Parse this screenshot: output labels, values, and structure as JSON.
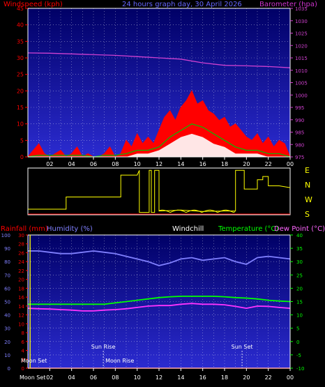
{
  "titles": {
    "windspeed": "Windspeed (kph)",
    "graph_title": "24 hours graph day, 30 April 2026",
    "barometer": "Barometer (hpa)",
    "rainfall": "Rainfall (mm)",
    "humidity": "Humidity (%)",
    "windchill": "Windchill",
    "temperature": "Temperature (°C)",
    "dewpoint": "Dew Point (°C)"
  },
  "colors": {
    "plot_bg_top": "#000066",
    "plot_bg_bottom": "#2b2bd0",
    "wind_gust": "#ff0000",
    "wind_avg": "#ffffff",
    "wind_green": "#00c000",
    "barometer": "#d040d0",
    "direction": "#ffff00",
    "humidity": "#8080ff",
    "temperature": "#00ff00",
    "dewpoint": "#ff33ff",
    "rainfall": "#ff0000"
  },
  "compass": [
    "E",
    "N",
    "W",
    "S"
  ],
  "astro": {
    "moon_set": "Moon Set",
    "sun_rise": "Sun Rise",
    "moon_rise": "Moon Rise",
    "sun_set": "Sun Set",
    "moon_set_hour": 0.2,
    "sun_rise_hour": 6.9,
    "moon_rise_hour": 6.9,
    "sun_set_hour": 19.6
  },
  "chart_data": [
    {
      "type": "area",
      "name": "wind-barometer",
      "x_ticks": [
        "02",
        "04",
        "06",
        "08",
        "10",
        "12",
        "14",
        "16",
        "18",
        "20",
        "22",
        "00"
      ],
      "xlim": [
        0,
        24
      ],
      "y_left": {
        "label": "Windspeed (kph)",
        "ylim": [
          0,
          45
        ],
        "ticks": [
          "0",
          "5",
          "10",
          "15",
          "20",
          "25",
          "30",
          "35",
          "40",
          "45"
        ]
      },
      "y_right": {
        "label": "Barometer (hpa)",
        "ylim": [
          975,
          1035
        ],
        "ticks": [
          "975",
          "980",
          "985",
          "990",
          "995",
          "1000",
          "1005",
          "1010",
          "1015",
          "1020",
          "1025",
          "1030",
          "1035"
        ]
      },
      "wind_gust": {
        "x": [
          0,
          0.5,
          1,
          1.5,
          2,
          2.5,
          3,
          3.5,
          4,
          4.5,
          5,
          5.5,
          6,
          6.5,
          7,
          7.5,
          8,
          8.5,
          9,
          9.5,
          10,
          10.5,
          11,
          11.5,
          12,
          12.5,
          13,
          13.5,
          14,
          14.5,
          15,
          15.5,
          16,
          16.5,
          17,
          17.5,
          18,
          18.5,
          19,
          19.5,
          20,
          20.5,
          21,
          21.5,
          22,
          22.5,
          23,
          23.5,
          24
        ],
        "values": [
          0,
          2,
          4,
          1,
          0,
          1,
          2,
          0,
          1,
          3,
          0,
          1,
          0,
          0,
          1,
          3,
          0,
          1,
          5,
          3,
          7,
          4,
          6,
          4,
          8,
          12,
          14,
          11,
          15,
          17,
          20,
          16,
          17,
          14,
          13,
          11,
          12,
          9,
          10,
          8,
          6,
          5,
          7,
          4,
          6,
          3,
          5,
          4,
          0
        ]
      },
      "wind_avg": {
        "x": [
          0,
          1,
          2,
          3,
          4,
          5,
          6,
          7,
          8,
          9,
          10,
          11,
          12,
          13,
          14,
          15,
          16,
          17,
          18,
          19,
          20,
          21,
          22,
          23,
          24
        ],
        "values": [
          0,
          0,
          0,
          0,
          0,
          0,
          0,
          0,
          0,
          0,
          1,
          1,
          2,
          4,
          6,
          7,
          6,
          4,
          3,
          1,
          1,
          1,
          0,
          0,
          0
        ]
      },
      "wind_green": {
        "x": [
          0,
          1,
          2,
          3,
          4,
          5,
          6,
          7,
          8,
          9,
          10,
          11,
          12,
          13,
          14,
          15,
          16,
          17,
          18,
          19,
          20,
          21,
          22,
          23,
          24
        ],
        "values": [
          0,
          0.5,
          0.5,
          0.5,
          0.5,
          0.5,
          0,
          0.5,
          0.5,
          1,
          2,
          2,
          3,
          6,
          8,
          10,
          9,
          7,
          5,
          3,
          2,
          2,
          1,
          1,
          0
        ]
      },
      "barometer": {
        "x": [
          0,
          2,
          4,
          6,
          8,
          10,
          12,
          14,
          16,
          18,
          20,
          22,
          24
        ],
        "values": [
          1017,
          1016.9,
          1016.6,
          1016.3,
          1016,
          1015.5,
          1015,
          1014.5,
          1013,
          1012,
          1011.8,
          1011.5,
          1011
        ]
      }
    },
    {
      "type": "line",
      "name": "wind-direction",
      "x_ticks": [
        "02",
        "04",
        "06",
        "08",
        "10",
        "12",
        "14",
        "16",
        "18",
        "20",
        "22",
        "00"
      ],
      "xlim": [
        0,
        24
      ],
      "compass_labels": [
        "E",
        "N",
        "W",
        "S"
      ],
      "direction": {
        "x": [
          0,
          3.5,
          3.5,
          8.5,
          8.5,
          10,
          10.2,
          10.2,
          11.1,
          11.1,
          11.3,
          11.3,
          11.6,
          11.6,
          12,
          12,
          14,
          16,
          18,
          19,
          19,
          19.8,
          19.8,
          21,
          21,
          21.5,
          21.5,
          22,
          22,
          23,
          24
        ],
        "values": [
          0.12,
          0.12,
          0.38,
          0.38,
          0.85,
          0.85,
          0.95,
          0.05,
          0.05,
          0.95,
          0.95,
          0.05,
          0.05,
          0.95,
          0.95,
          0.08,
          0.1,
          0.07,
          0.08,
          0.08,
          0.95,
          0.95,
          0.55,
          0.55,
          0.75,
          0.75,
          0.82,
          0.82,
          0.62,
          0.62,
          0.58
        ]
      }
    },
    {
      "type": "line",
      "name": "temp-humidity-rain",
      "x_ticks": [
        "Moon Set",
        "02",
        "04",
        "06",
        "08",
        "10",
        "12",
        "14",
        "16",
        "18",
        "20",
        "22",
        "00"
      ],
      "xlim": [
        0,
        24
      ],
      "y_humidity": {
        "label": "Humidity (%)",
        "ylim": [
          0,
          100
        ],
        "ticks": [
          "0",
          "10",
          "20",
          "30",
          "40",
          "50",
          "60",
          "70",
          "80",
          "90",
          "100"
        ]
      },
      "y_rain": {
        "label": "Rainfall (mm)",
        "ylim": [
          0,
          30
        ],
        "ticks": [
          "0",
          "2",
          "4",
          "6",
          "8",
          "10",
          "12",
          "14",
          "16",
          "18",
          "20",
          "22",
          "24",
          "26",
          "28",
          "30"
        ]
      },
      "y_temp": {
        "label": "Temperature (°C)",
        "ylim": [
          -10,
          40
        ],
        "ticks": [
          "-10",
          "-5",
          "0",
          "5",
          "10",
          "15",
          "20",
          "25",
          "30",
          "35",
          "40"
        ]
      },
      "humidity": {
        "x": [
          0,
          1,
          2,
          3,
          4,
          5,
          6,
          7,
          8,
          9,
          10,
          11,
          12,
          13,
          14,
          15,
          16,
          17,
          18,
          19,
          20,
          21,
          22,
          23,
          24
        ],
        "values": [
          88,
          88,
          87,
          86,
          86,
          87,
          88,
          87,
          86,
          84,
          82,
          80,
          77,
          79,
          82,
          83,
          81,
          82,
          83,
          80,
          78,
          83,
          84,
          83,
          82
        ]
      },
      "temperature": {
        "x": [
          0,
          1,
          2,
          3,
          4,
          5,
          6,
          7,
          8,
          9,
          10,
          11,
          12,
          13,
          14,
          15,
          16,
          17,
          18,
          19,
          20,
          21,
          22,
          23,
          24
        ],
        "values": [
          14,
          14,
          14,
          14,
          14,
          14,
          14,
          14,
          14.5,
          15,
          15.5,
          16,
          16.5,
          16.8,
          17,
          17,
          17,
          17,
          16.8,
          16.5,
          16.3,
          16,
          15.5,
          15.2,
          15
        ]
      },
      "dewpoint": {
        "x": [
          0,
          1,
          2,
          3,
          4,
          5,
          6,
          7,
          8,
          9,
          10,
          11,
          12,
          13,
          14,
          15,
          16,
          17,
          18,
          19,
          20,
          21,
          22,
          23,
          24
        ],
        "values": [
          12.5,
          12.3,
          12.2,
          12,
          11.8,
          11.5,
          11.5,
          11.8,
          12,
          12.3,
          12.8,
          13.3,
          13.5,
          13.5,
          14,
          14.3,
          14,
          14,
          13.8,
          13.2,
          12.5,
          13.3,
          13.2,
          12.8,
          12.5
        ]
      },
      "rainfall": {
        "x": [
          0,
          24
        ],
        "values": [
          0,
          0
        ]
      }
    }
  ]
}
